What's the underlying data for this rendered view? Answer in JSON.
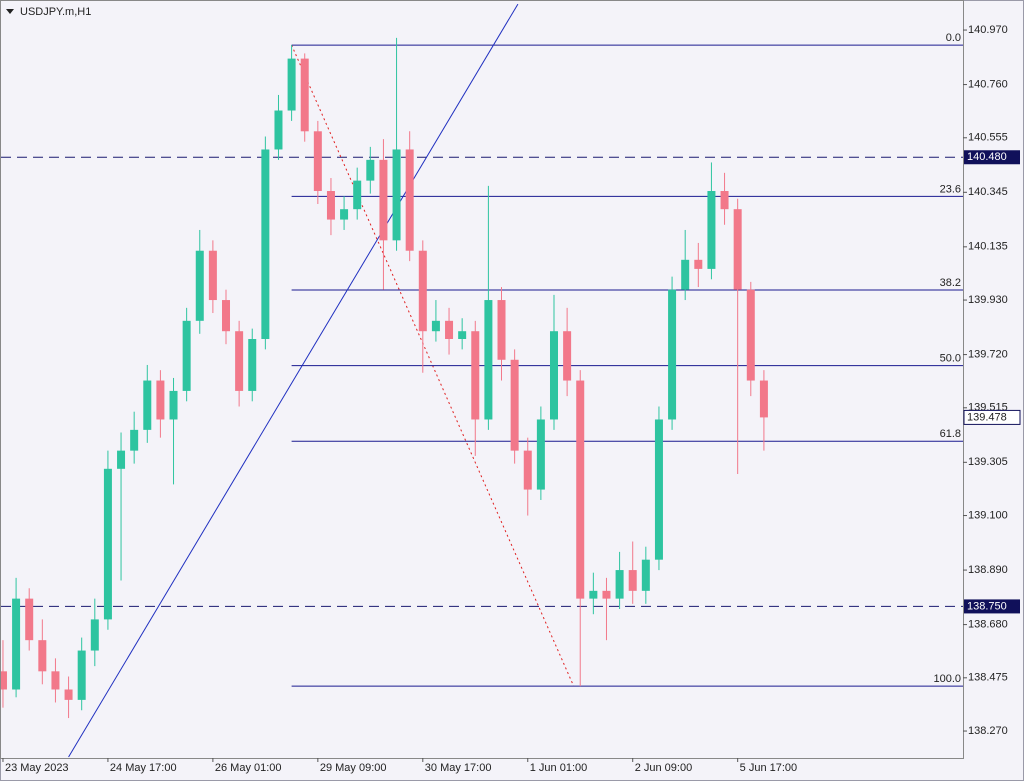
{
  "chart_data": {
    "type": "candlestick",
    "title": "USDJPY.m,H1",
    "xlim": [
      -0.6,
      292.7
    ],
    "ylim": [
      138.17,
      141.078
    ],
    "xticks": [
      {
        "value": 0,
        "label": "23 May 2023"
      },
      {
        "value": 32,
        "label": "24 May 17:00"
      },
      {
        "value": 64,
        "label": "26 May 01:00"
      },
      {
        "value": 96,
        "label": "29 May 09:00"
      },
      {
        "value": 128,
        "label": "30 May 17:00"
      },
      {
        "value": 160,
        "label": "1 Jun 01:00"
      },
      {
        "value": 192,
        "label": "2 Jun 09:00"
      },
      {
        "value": 224,
        "label": "5 Jun 17:00"
      }
    ],
    "yticks": [
      {
        "value": 140.97,
        "label": "140.970"
      },
      {
        "value": 140.76,
        "label": "140.760"
      },
      140.555,
      140.345,
      140.135,
      {
        "value": 139.93,
        "label": "139.930"
      },
      {
        "value": 139.72,
        "label": "139.720"
      },
      139.515,
      139.305,
      {
        "value": 139.1,
        "label": "139.100"
      },
      {
        "value": 138.89,
        "label": "138.890"
      },
      {
        "value": 138.68,
        "label": "138.680"
      },
      138.475,
      {
        "value": 138.27,
        "label": "138.270"
      }
    ],
    "up_color": "#2ec4a0",
    "down_color": "#f2788a",
    "x": [
      0,
      4,
      8,
      12,
      16,
      20,
      24,
      28,
      32,
      36,
      40,
      44,
      48,
      52,
      56,
      60,
      64,
      68,
      72,
      76,
      80,
      84,
      88,
      92,
      96,
      100,
      104,
      108,
      112,
      116,
      120,
      124,
      128,
      132,
      136,
      140,
      144,
      148,
      152,
      156,
      160,
      164,
      168,
      172,
      176,
      180,
      184,
      188,
      192,
      196,
      200,
      204,
      208,
      212,
      216,
      220,
      224,
      228,
      232
    ],
    "ohlc": [
      [
        138.5,
        138.62,
        138.36,
        138.43
      ],
      [
        138.43,
        138.86,
        138.4,
        138.78
      ],
      [
        138.78,
        138.82,
        138.58,
        138.62
      ],
      [
        138.62,
        138.7,
        138.45,
        138.5
      ],
      [
        138.5,
        138.55,
        138.38,
        138.43
      ],
      [
        138.43,
        138.48,
        138.32,
        138.39
      ],
      [
        138.39,
        138.63,
        138.35,
        138.58
      ],
      [
        138.58,
        138.78,
        138.52,
        138.7
      ],
      [
        138.7,
        139.35,
        138.66,
        139.28
      ],
      [
        139.28,
        139.42,
        138.85,
        139.35
      ],
      [
        139.35,
        139.5,
        139.3,
        139.43
      ],
      [
        139.43,
        139.68,
        139.38,
        139.62
      ],
      [
        139.62,
        139.66,
        139.4,
        139.47
      ],
      [
        139.47,
        139.63,
        139.22,
        139.58
      ],
      [
        139.58,
        139.9,
        139.54,
        139.85
      ],
      [
        139.85,
        140.2,
        139.8,
        140.12
      ],
      [
        140.12,
        140.16,
        139.88,
        139.93
      ],
      [
        139.93,
        139.97,
        139.76,
        139.81
      ],
      [
        139.81,
        139.85,
        139.52,
        139.58
      ],
      [
        139.58,
        139.82,
        139.54,
        139.78
      ],
      [
        139.78,
        140.56,
        139.74,
        140.51
      ],
      [
        140.51,
        140.72,
        140.47,
        140.66
      ],
      [
        140.66,
        140.912,
        140.62,
        140.86
      ],
      [
        140.86,
        140.88,
        140.54,
        140.58
      ],
      [
        140.58,
        140.62,
        140.3,
        140.35
      ],
      [
        140.35,
        140.4,
        140.18,
        140.24
      ],
      [
        140.24,
        140.33,
        140.2,
        140.28
      ],
      [
        140.28,
        140.44,
        140.24,
        140.39
      ],
      [
        140.39,
        140.52,
        140.34,
        140.47
      ],
      [
        140.47,
        140.55,
        139.97,
        140.16
      ],
      [
        140.16,
        140.94,
        140.12,
        140.51
      ],
      [
        140.51,
        140.58,
        140.08,
        140.12
      ],
      [
        140.12,
        140.16,
        139.65,
        139.81
      ],
      [
        139.81,
        139.93,
        139.77,
        139.85
      ],
      [
        139.85,
        139.9,
        139.72,
        139.78
      ],
      [
        139.78,
        139.86,
        139.74,
        139.81
      ],
      [
        139.81,
        139.85,
        139.33,
        139.47
      ],
      [
        139.47,
        140.37,
        139.43,
        139.93
      ],
      [
        139.93,
        139.98,
        139.62,
        139.7
      ],
      [
        139.7,
        139.74,
        139.3,
        139.35
      ],
      [
        139.35,
        139.4,
        139.1,
        139.2
      ],
      [
        139.2,
        139.52,
        139.16,
        139.47
      ],
      [
        139.47,
        139.95,
        139.43,
        139.81
      ],
      [
        139.81,
        139.9,
        139.56,
        139.62
      ],
      [
        139.62,
        139.66,
        138.443,
        138.78
      ],
      [
        138.78,
        138.88,
        138.72,
        138.81
      ],
      [
        138.81,
        138.86,
        138.62,
        138.78
      ],
      [
        138.78,
        138.96,
        138.74,
        138.89
      ],
      [
        138.89,
        139.0,
        138.76,
        138.81
      ],
      [
        138.81,
        138.98,
        138.76,
        138.93
      ],
      [
        138.93,
        139.52,
        138.89,
        139.47
      ],
      [
        139.47,
        140.02,
        139.43,
        139.97
      ],
      [
        139.97,
        140.2,
        139.93,
        140.085
      ],
      [
        140.085,
        140.15,
        139.98,
        140.05
      ],
      [
        140.05,
        140.46,
        140.01,
        140.35
      ],
      [
        140.35,
        140.42,
        140.22,
        140.28
      ],
      [
        140.28,
        140.32,
        139.26,
        139.97
      ],
      [
        139.97,
        140.0,
        139.56,
        139.62
      ],
      [
        139.62,
        139.66,
        139.35,
        139.478
      ]
    ],
    "hlines": [
      {
        "value": 140.48,
        "label": "140.480"
      },
      {
        "value": 138.75,
        "label": "138.750"
      }
    ],
    "current_price": 139.478,
    "trendline": {
      "x": [
        20,
        157
      ],
      "y": [
        138.17,
        141.07
      ]
    },
    "fib": {
      "x": [
        88,
        174
      ],
      "high": 140.912,
      "low": 138.443,
      "levels": [
        {
          "value": 0,
          "label": "0.0"
        },
        23.6,
        38.2,
        {
          "value": 50,
          "label": "50.0"
        },
        61.8,
        {
          "value": 100,
          "label": "100.0"
        }
      ]
    }
  }
}
